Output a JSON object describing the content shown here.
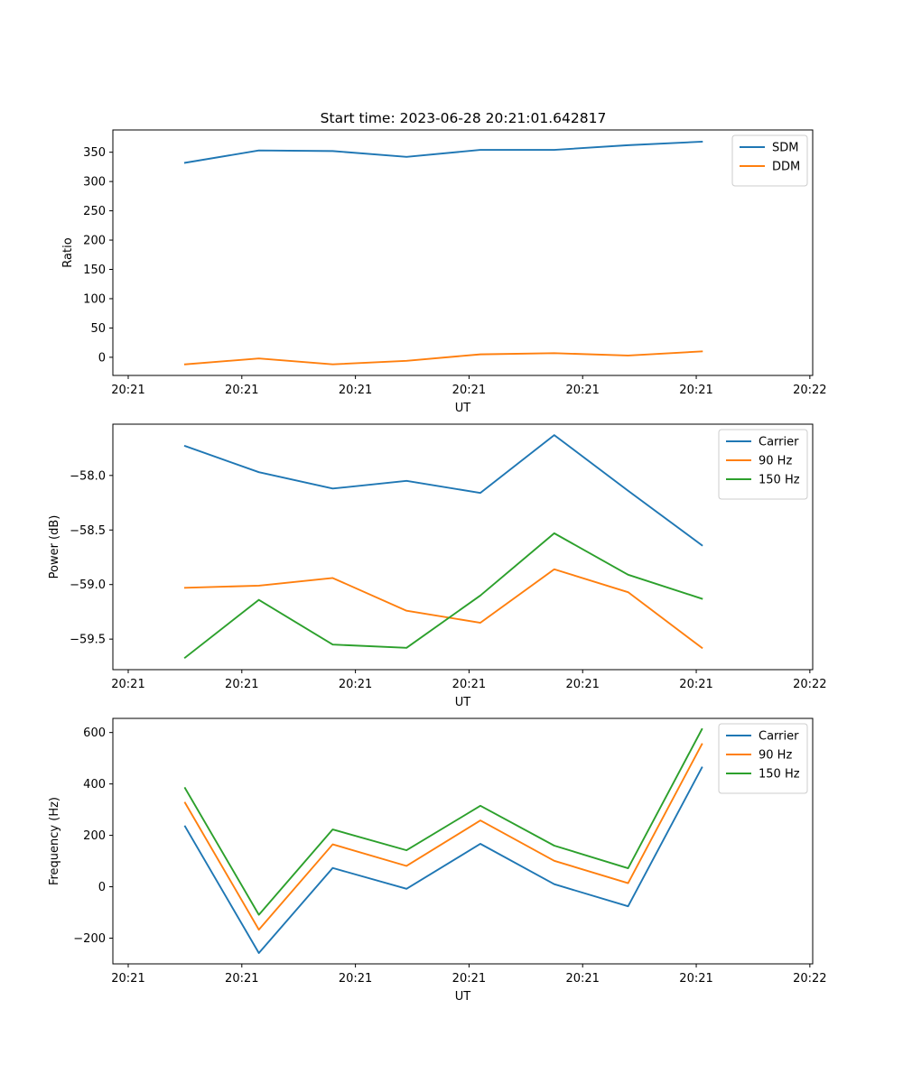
{
  "figure": {
    "title": "Start time: 2023-06-28 20:21:01.642817"
  },
  "colors": {
    "blue": "#1f77b4",
    "orange": "#ff7f0e",
    "green": "#2ca02c"
  },
  "chart_data": [
    {
      "type": "line",
      "title": "Start time: 2023-06-28 20:21:01.642817",
      "xlabel": "UT",
      "ylabel": "Ratio",
      "xticklabels": [
        "20:21",
        "20:21",
        "20:21",
        "20:21",
        "20:21",
        "20:21",
        "20:22"
      ],
      "x_tick_values": [
        0,
        2,
        4,
        6,
        8,
        10,
        12
      ],
      "xlim": [
        -0.27,
        12.05
      ],
      "yticks": [
        0,
        50,
        100,
        150,
        200,
        250,
        300,
        350
      ],
      "ylim": [
        -31,
        388
      ],
      "grid": false,
      "legend": "top-right",
      "x": [
        1,
        2.3,
        3.6,
        4.9,
        6.2,
        7.5,
        8.8,
        10.1
      ],
      "series": [
        {
          "name": "SDM",
          "color": "#1f77b4",
          "values": [
            332,
            353,
            352,
            342,
            354,
            354,
            362,
            368
          ]
        },
        {
          "name": "DDM",
          "color": "#ff7f0e",
          "values": [
            -12,
            -2,
            -12,
            -6,
            5,
            7,
            3,
            10
          ]
        }
      ]
    },
    {
      "type": "line",
      "title": "",
      "xlabel": "UT",
      "ylabel": "Power (dB)",
      "xticklabels": [
        "20:21",
        "20:21",
        "20:21",
        "20:21",
        "20:21",
        "20:21",
        "20:22"
      ],
      "x_tick_values": [
        0,
        2,
        4,
        6,
        8,
        10,
        12
      ],
      "xlim": [
        -0.27,
        12.05
      ],
      "yticks": [
        -59.5,
        -59.0,
        -58.5,
        -58.0
      ],
      "ytick_labels": [
        "−59.5",
        "−59.0",
        "−58.5",
        "−58.0"
      ],
      "ylim": [
        -59.78,
        -57.53
      ],
      "grid": false,
      "legend": "top-right",
      "x": [
        1,
        2.3,
        3.6,
        4.9,
        6.2,
        7.5,
        8.8,
        10.1
      ],
      "series": [
        {
          "name": "Carrier",
          "color": "#1f77b4",
          "values": [
            -57.73,
            -57.97,
            -58.12,
            -58.05,
            -58.16,
            -57.63,
            -58.14,
            -58.64
          ]
        },
        {
          "name": "90 Hz",
          "color": "#ff7f0e",
          "values": [
            -59.03,
            -59.01,
            -58.94,
            -59.24,
            -59.35,
            -58.86,
            -59.07,
            -59.58
          ]
        },
        {
          "name": "150 Hz",
          "color": "#2ca02c",
          "values": [
            -59.67,
            -59.14,
            -59.55,
            -59.58,
            -59.1,
            -58.53,
            -58.91,
            -59.13
          ]
        }
      ]
    },
    {
      "type": "line",
      "title": "",
      "xlabel": "UT",
      "ylabel": "Frequency (Hz)",
      "xticklabels": [
        "20:21",
        "20:21",
        "20:21",
        "20:21",
        "20:21",
        "20:21",
        "20:22"
      ],
      "x_tick_values": [
        0,
        2,
        4,
        6,
        8,
        10,
        12
      ],
      "xlim": [
        -0.27,
        12.05
      ],
      "yticks": [
        -200,
        0,
        200,
        400,
        600
      ],
      "ytick_labels": [
        "−200",
        "0",
        "200",
        "400",
        "600"
      ],
      "ylim": [
        -300,
        655
      ],
      "grid": false,
      "legend": "top-right",
      "x": [
        1,
        2.3,
        3.6,
        4.9,
        6.2,
        7.5,
        8.8,
        10.1
      ],
      "series": [
        {
          "name": "Carrier",
          "color": "#1f77b4",
          "values": [
            235,
            -258,
            73,
            -8,
            167,
            10,
            -76,
            464
          ]
        },
        {
          "name": "90 Hz",
          "color": "#ff7f0e",
          "values": [
            327,
            -167,
            165,
            81,
            258,
            101,
            14,
            555
          ]
        },
        {
          "name": "150 Hz",
          "color": "#2ca02c",
          "values": [
            384,
            -109,
            223,
            142,
            315,
            160,
            72,
            613
          ]
        }
      ]
    }
  ]
}
